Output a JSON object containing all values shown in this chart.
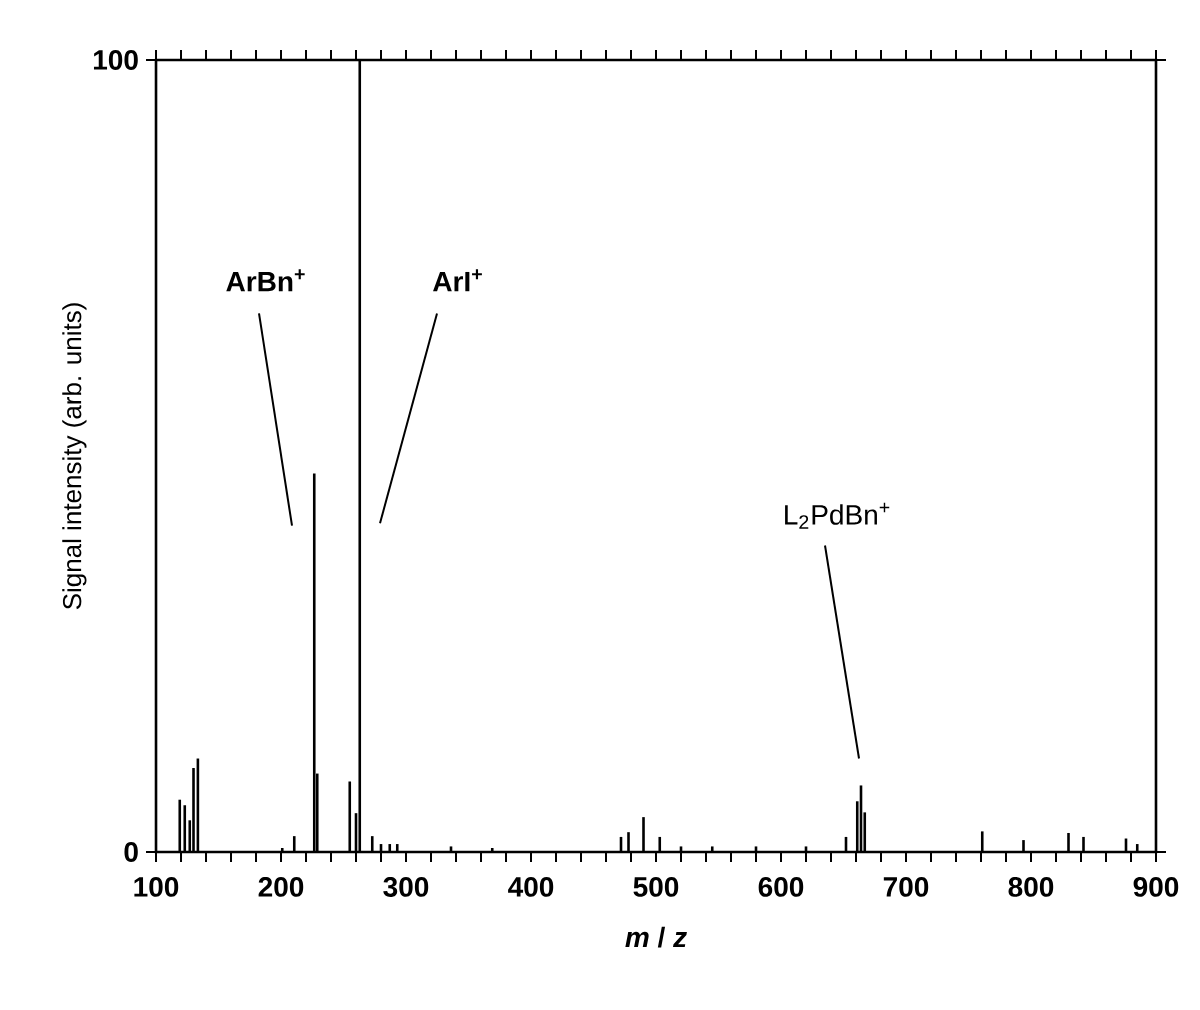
{
  "chart_data": {
    "type": "bar",
    "xlabel": "*m* / *z*",
    "ylabel": "Signal intensity (arb. units)",
    "x": [
      119,
      123,
      127,
      130,
      133.5,
      201,
      210.6,
      226.6,
      229,
      255,
      260,
      263,
      273,
      280,
      287,
      293,
      336,
      369,
      472,
      478,
      490,
      503,
      520,
      545,
      580,
      620,
      652,
      661,
      664,
      667,
      761,
      794,
      830,
      842,
      876,
      885
    ],
    "values": [
      6.6,
      5.9,
      4,
      10.6,
      11.8,
      0.5,
      2,
      47.8,
      9.9,
      8.9,
      4.9,
      100,
      2,
      1,
      1,
      1,
      0.7,
      0.5,
      1.9,
      2.5,
      4.4,
      1.9,
      0.7,
      0.7,
      0.7,
      0.7,
      1.9,
      6.4,
      8.4,
      5,
      2.6,
      1.5,
      2.4,
      1.9,
      1.7,
      1
    ],
    "color": "#000000",
    "xlim": [
      100,
      900
    ],
    "ylim": [
      0,
      100
    ],
    "xticks": [
      100,
      {
        "value": 120,
        "label": null
      },
      {
        "value": 140,
        "label": null
      },
      {
        "value": 160,
        "label": null
      },
      {
        "value": 180,
        "label": null
      },
      200,
      {
        "value": 220,
        "label": null
      },
      {
        "value": 240,
        "label": null
      },
      {
        "value": 260,
        "label": null
      },
      {
        "value": 280,
        "label": null
      },
      300,
      {
        "value": 320,
        "label": null
      },
      {
        "value": 340,
        "label": null
      },
      {
        "value": 360,
        "label": null
      },
      {
        "value": 380,
        "label": null
      },
      400,
      {
        "value": 420,
        "label": null
      },
      {
        "value": 440,
        "label": null
      },
      {
        "value": 460,
        "label": null
      },
      {
        "value": 480,
        "label": null
      },
      500,
      {
        "value": 520,
        "label": null
      },
      {
        "value": 540,
        "label": null
      },
      {
        "value": 560,
        "label": null
      },
      {
        "value": 580,
        "label": null
      },
      600,
      {
        "value": 620,
        "label": null
      },
      {
        "value": 640,
        "label": null
      },
      {
        "value": 660,
        "label": null
      },
      {
        "value": 680,
        "label": null
      },
      700,
      {
        "value": 720,
        "label": null
      },
      {
        "value": 740,
        "label": null
      },
      {
        "value": 760,
        "label": null
      },
      {
        "value": 780,
        "label": null
      },
      800,
      {
        "value": 820,
        "label": null
      },
      {
        "value": 840,
        "label": null
      },
      {
        "value": 860,
        "label": null
      },
      {
        "value": 880,
        "label": null
      },
      900
    ],
    "yticks": [
      0,
      100
    ],
    "annotations": [
      "ArBn$^{+}$",
      "ArI$^{+}$",
      "L$_{2}$PdBn$^{+}$"
    ]
  }
}
